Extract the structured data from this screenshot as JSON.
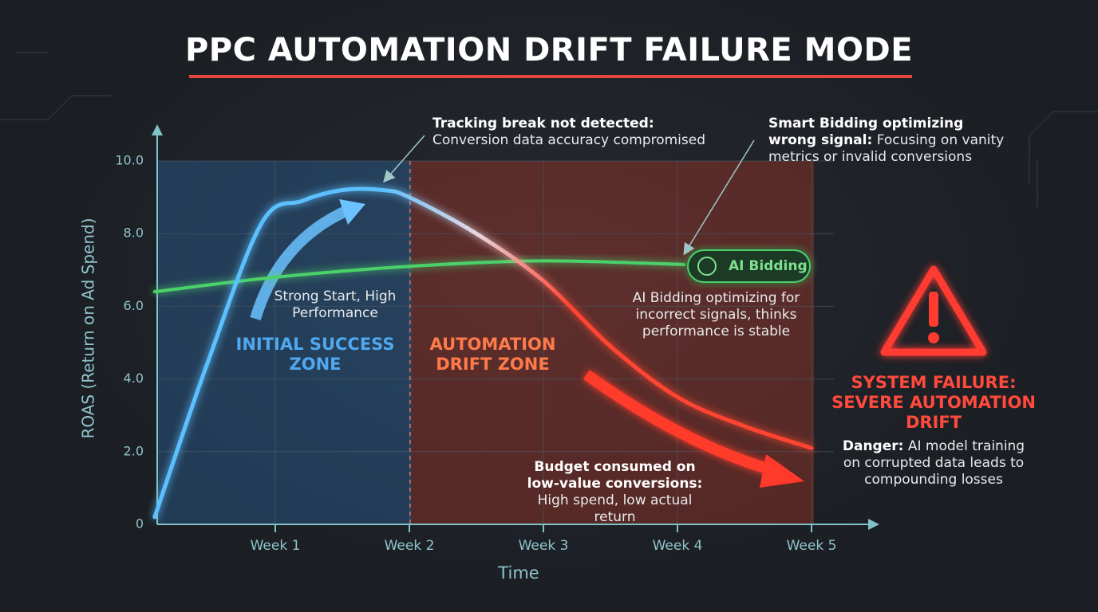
{
  "title": "PPC AUTOMATION DRIFT FAILURE MODE",
  "chart_data": {
    "type": "line",
    "x_label": "Time",
    "y_label": "ROAS (Return on Ad Spend)",
    "xlim": [
      0.1,
      5.5
    ],
    "ylim": [
      0,
      10
    ],
    "xticks": [
      {
        "value": 1,
        "label": "Week 1"
      },
      {
        "value": 2,
        "label": "Week 2"
      },
      {
        "value": 3,
        "label": "Week 3"
      },
      {
        "value": 4,
        "label": "Week 4"
      },
      {
        "value": 5,
        "label": "Week 5"
      }
    ],
    "yticks": [
      0,
      {
        "value": 2,
        "label": "2.0"
      },
      {
        "value": 4,
        "label": "4.0"
      },
      {
        "value": 6,
        "label": "6.0"
      },
      {
        "value": 8,
        "label": "8.0"
      },
      {
        "value": 10,
        "label": "10.0"
      }
    ],
    "grid": true,
    "zones": [
      {
        "label": "INITIAL SUCCESS ZONE",
        "x": [
          0.1,
          2
        ],
        "color": "#2f74b5"
      },
      {
        "label": "AUTOMATION DRIFT ZONE",
        "x": [
          2,
          5
        ],
        "color": "#c23a26"
      }
    ],
    "series": [
      {
        "color": "#5cc0ff",
        "color_end": "#ff4433",
        "x": [
          0.1,
          0.5,
          0.9,
          1.2,
          1.5,
          1.8,
          2,
          2.5,
          3,
          3.5,
          4,
          4.5,
          5
        ],
        "values": [
          0.2,
          4.5,
          8.3,
          8.9,
          9.2,
          9.2,
          9.0,
          8.0,
          6.7,
          4.9,
          3.5,
          2.7,
          2.1
        ]
      },
      {
        "name": "AI Bidding",
        "color": "#4cd16a",
        "x": [
          0.1,
          1,
          2,
          3,
          4.05
        ],
        "values": [
          6.4,
          6.8,
          7.1,
          7.25,
          7.15
        ]
      }
    ]
  },
  "annotations": [
    {
      "bold": "Tracking break not detected:",
      "text": "Conversion data accuracy compromised"
    },
    {
      "bold": "Smart Bidding optimizing wrong signal:",
      "text": "Focusing on vanity metrics or invalid conversions"
    },
    {
      "text": "Strong Start, High Performance"
    },
    {
      "text": "AI Bidding optimizing for incorrect signals, thinks performance is stable"
    },
    {
      "bold": "Budget consumed on low-value conversions:",
      "text": "High spend, low actual return"
    },
    {
      "bold": "SYSTEM FAILURE: SEVERE AUTOMATION DRIFT"
    },
    {
      "bold": "Danger:",
      "text": "AI model training on corrupted data leads to compounding losses"
    }
  ]
}
